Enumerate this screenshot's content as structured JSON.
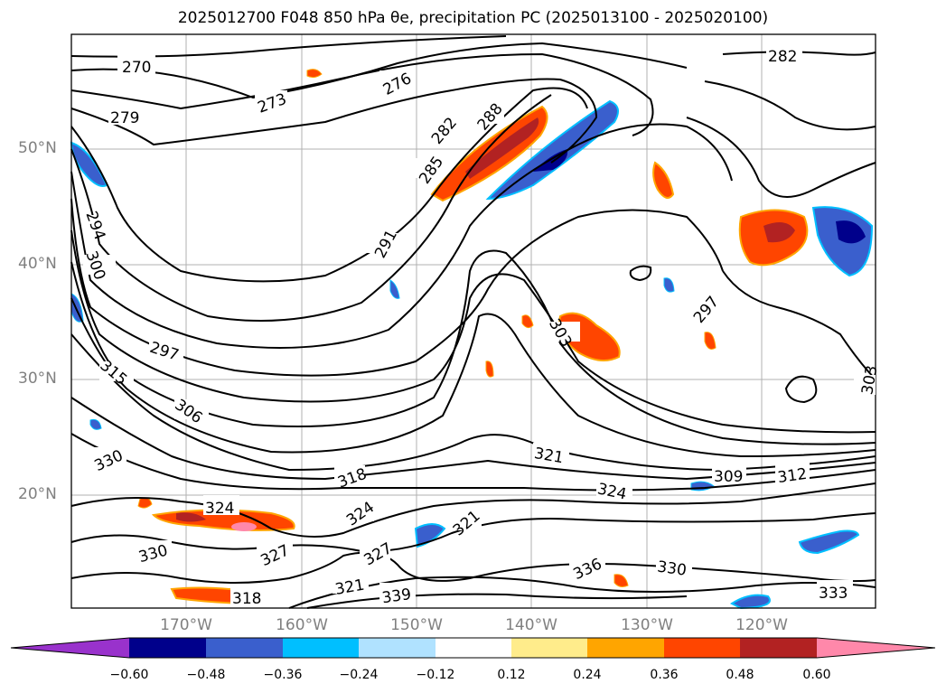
{
  "title": "2025012700 F048 850 hPa θe, precipitation PC (2025013100 - 2025020100)",
  "lat_labels": [
    "50°N",
    "40°N",
    "30°N",
    "20°N"
  ],
  "lon_labels": [
    "170°W",
    "160°W",
    "150°W",
    "140°W",
    "130°W",
    "120°W"
  ],
  "contour_labels": [
    "270",
    "273",
    "276",
    "279",
    "282",
    "285",
    "288",
    "291",
    "294",
    "297",
    "300",
    "303",
    "306",
    "309",
    "312",
    "315",
    "318",
    "321",
    "324",
    "327",
    "330",
    "333",
    "336",
    "339"
  ],
  "colorbar": {
    "colors": [
      "#9932cc",
      "#00008b",
      "#3a5fcd",
      "#00bfff",
      "#b0e2ff",
      "#ffffff",
      "#ffec8b",
      "#ffa500",
      "#ff4500",
      "#b22222",
      "#ff88aa"
    ],
    "ticks": [
      "−0.60",
      "−0.48",
      "−0.36",
      "−0.24",
      "−0.12",
      "0.12",
      "0.24",
      "0.36",
      "0.48",
      "0.60"
    ]
  }
}
